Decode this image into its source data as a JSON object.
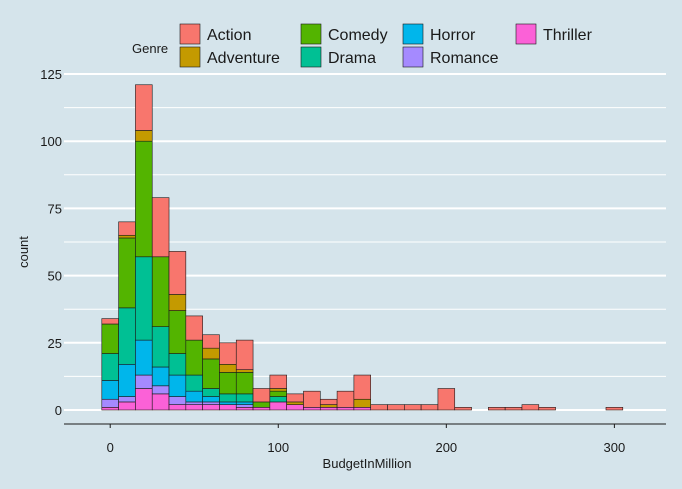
{
  "chart_data": {
    "type": "bar",
    "stacked": true,
    "histogram": true,
    "title": "",
    "xlabel": "BudgetInMillion",
    "ylabel": "count",
    "xlim": [
      -15,
      320
    ],
    "ylim": [
      0,
      125
    ],
    "x_ticks": [
      0,
      100,
      200,
      300
    ],
    "x_tick_labels": [
      "0",
      "100",
      "200",
      "300"
    ],
    "y_ticks": [
      0,
      25,
      50,
      75,
      100,
      125
    ],
    "y_tick_labels": [
      "0",
      "25",
      "50",
      "75",
      "100",
      "125"
    ],
    "grid": "horizontal",
    "legend": {
      "title": "Genre",
      "placement": "top"
    },
    "bin_width": 10,
    "bin_starts": [
      -5,
      5,
      15,
      25,
      35,
      45,
      55,
      65,
      75,
      85,
      95,
      105,
      115,
      125,
      135,
      145,
      155,
      165,
      175,
      185,
      195,
      205,
      215,
      225,
      235,
      245,
      255,
      265,
      275,
      285,
      295
    ],
    "series": [
      {
        "name": "Action",
        "color": "#f8766d",
        "values": [
          2,
          5,
          17,
          22,
          16,
          9,
          5,
          8,
          11,
          5,
          5,
          3,
          6,
          2,
          6,
          9,
          2,
          2,
          2,
          2,
          8,
          1,
          0,
          1,
          1,
          2,
          1,
          0,
          0,
          0,
          1
        ]
      },
      {
        "name": "Adventure",
        "color": "#c49a00",
        "values": [
          0,
          1,
          4,
          0,
          6,
          0,
          4,
          3,
          1,
          0,
          1,
          1,
          0,
          1,
          0,
          3,
          0,
          0,
          0,
          0,
          0,
          0,
          0,
          0,
          0,
          0,
          0,
          0,
          0,
          0,
          0
        ]
      },
      {
        "name": "Comedy",
        "color": "#53b400",
        "values": [
          11,
          26,
          43,
          26,
          16,
          13,
          11,
          8,
          8,
          2,
          2,
          0,
          0,
          0,
          0,
          0,
          0,
          0,
          0,
          0,
          0,
          0,
          0,
          0,
          0,
          0,
          0,
          0,
          0,
          0,
          0
        ]
      },
      {
        "name": "Drama",
        "color": "#00c094",
        "values": [
          10,
          21,
          31,
          15,
          8,
          6,
          3,
          3,
          3,
          0,
          2,
          0,
          0,
          0,
          0,
          0,
          0,
          0,
          0,
          0,
          0,
          0,
          0,
          0,
          0,
          0,
          0,
          0,
          0,
          0,
          0
        ]
      },
      {
        "name": "Horror",
        "color": "#00b6eb",
        "values": [
          7,
          12,
          13,
          7,
          8,
          4,
          2,
          1,
          1,
          0,
          0,
          0,
          0,
          0,
          0,
          0,
          0,
          0,
          0,
          0,
          0,
          0,
          0,
          0,
          0,
          0,
          0,
          0,
          0,
          0,
          0
        ]
      },
      {
        "name": "Romance",
        "color": "#a58aff",
        "values": [
          3,
          2,
          5,
          3,
          3,
          1,
          1,
          0,
          1,
          0,
          0,
          0,
          0,
          0,
          0,
          0,
          0,
          0,
          0,
          0,
          0,
          0,
          0,
          0,
          0,
          0,
          0,
          0,
          0,
          0,
          0
        ]
      },
      {
        "name": "Thriller",
        "color": "#fb61d7",
        "values": [
          1,
          3,
          8,
          6,
          2,
          2,
          2,
          2,
          1,
          1,
          3,
          2,
          1,
          1,
          1,
          1,
          0,
          0,
          0,
          0,
          0,
          0,
          0,
          0,
          0,
          0,
          0,
          0,
          0,
          0,
          0
        ]
      }
    ]
  },
  "colors": {
    "panel_background": "#d5e4eb",
    "gridline": "#ffffff",
    "bar_outline": "#1a1a1a",
    "text": "#1a1a1a"
  }
}
